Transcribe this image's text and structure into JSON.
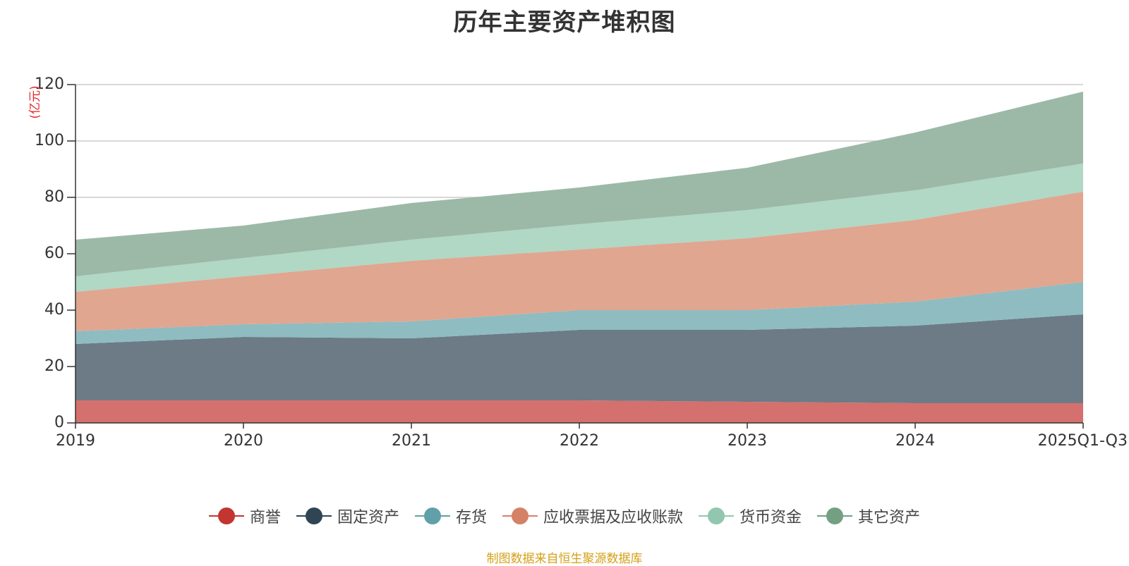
{
  "chart_data": {
    "type": "area",
    "stacked": true,
    "title": "历年主要资产堆积图",
    "ylabel": "(亿元)",
    "xlabel": "",
    "ylim": [
      0,
      120
    ],
    "yticks": [
      0,
      20,
      40,
      60,
      80,
      100,
      120
    ],
    "categories": [
      "2019",
      "2020",
      "2021",
      "2022",
      "2023",
      "2024",
      "2025Q1-Q3"
    ],
    "series": [
      {
        "name": "商誉",
        "color": "#c23531",
        "fill": "#d4706d",
        "values": [
          8.0,
          8.0,
          8.0,
          8.0,
          7.5,
          7.0,
          7.0
        ]
      },
      {
        "name": "固定资产",
        "color": "#2f4554",
        "fill": "#6c7b86",
        "values": [
          20.0,
          22.5,
          22.0,
          25.0,
          25.5,
          27.5,
          31.5
        ]
      },
      {
        "name": "存货",
        "color": "#61a0a8",
        "fill": "#8ebcc1",
        "values": [
          4.5,
          4.5,
          6.0,
          7.0,
          7.0,
          8.5,
          11.5
        ]
      },
      {
        "name": "应收票据及应收账款",
        "color": "#d48265",
        "fill": "#e0a690",
        "values": [
          14.0,
          17.0,
          21.5,
          21.5,
          25.5,
          29.0,
          32.0
        ]
      },
      {
        "name": "货币资金",
        "color": "#91c7ae",
        "fill": "#b1d7c5",
        "values": [
          5.5,
          6.5,
          7.5,
          9.0,
          10.0,
          10.5,
          10.0
        ]
      },
      {
        "name": "其它资产",
        "color": "#749f83",
        "fill": "#9cb9a7",
        "values": [
          13.0,
          11.5,
          13.0,
          13.0,
          15.0,
          20.5,
          25.5
        ]
      }
    ],
    "legend_position": "bottom-center",
    "grid": true
  },
  "source_text": "制图数据来自恒生聚源数据库"
}
